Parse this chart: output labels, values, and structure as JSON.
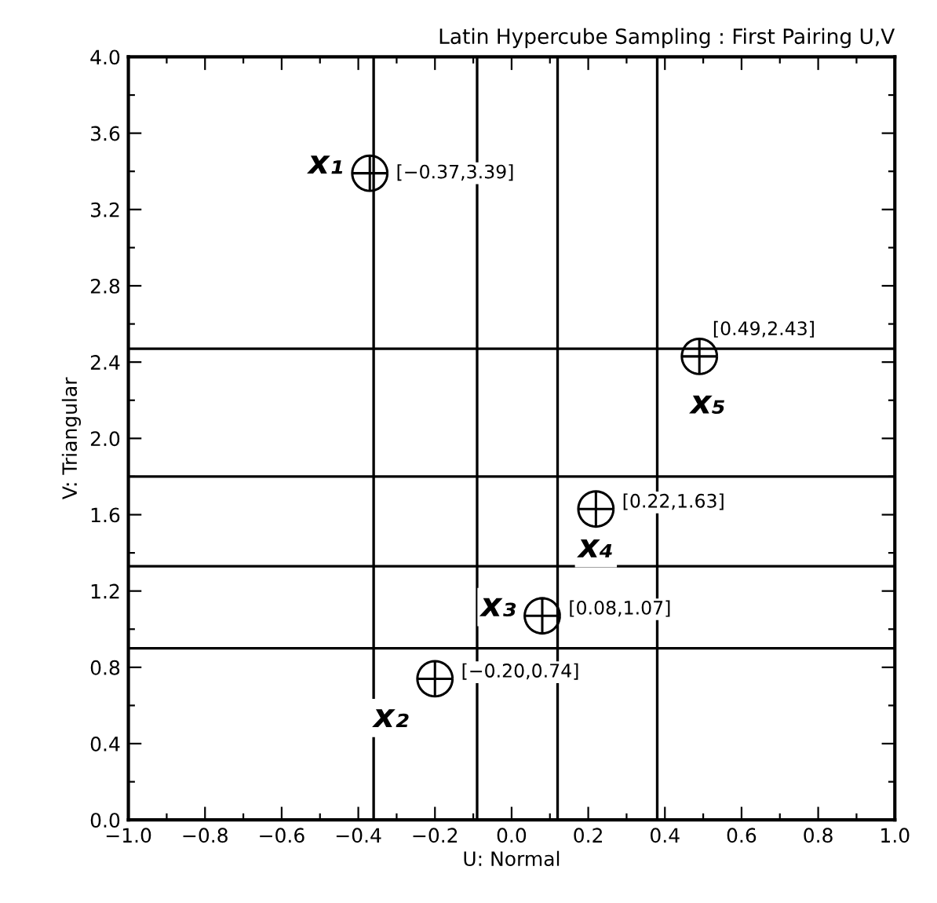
{
  "chart_data": {
    "type": "scatter",
    "title": "Latin Hypercube Sampling : First Pairing U,V",
    "xlabel": "U: Normal",
    "ylabel": "V: Triangular",
    "x": [
      -0.37,
      -0.2,
      0.08,
      0.22,
      0.49
    ],
    "values": [
      3.39,
      0.74,
      1.07,
      1.63,
      2.43
    ],
    "value_labels": [
      "[−0.37,3.39]",
      "[−0.20,0.74]",
      "[0.08,1.07]",
      "[0.22,1.63]",
      "[0.49,2.43]"
    ],
    "color": "#000000",
    "marker": "circle",
    "grid": false,
    "legend": false,
    "annotations": [
      {
        "text": "x₁",
        "x": -0.37,
        "y": 3.39
      },
      {
        "text": "x₂",
        "x": -0.2,
        "y": 0.74
      },
      {
        "text": "x₃",
        "x": 0.08,
        "y": 1.07
      },
      {
        "text": "x₄",
        "x": 0.22,
        "y": 1.63
      },
      {
        "text": "x₅",
        "x": 0.49,
        "y": 2.43
      }
    ],
    "ref_lines": [
      {
        "axis": "x",
        "value": -0.36
      },
      {
        "axis": "x",
        "value": -0.09
      },
      {
        "axis": "x",
        "value": 0.12
      },
      {
        "axis": "x",
        "value": 0.38
      },
      {
        "axis": "y",
        "value": 0.9
      },
      {
        "axis": "y",
        "value": 1.33
      },
      {
        "axis": "y",
        "value": 1.8
      },
      {
        "axis": "y",
        "value": 2.47
      }
    ],
    "xlim": [
      -1.0,
      1.0
    ],
    "ylim": [
      0.0,
      4.0
    ],
    "xticks": [
      {
        "value": -1.0,
        "label": "−1.0"
      },
      {
        "value": -0.9,
        "label": null
      },
      {
        "value": -0.8,
        "label": "−0.8"
      },
      {
        "value": -0.7,
        "label": null
      },
      {
        "value": -0.6,
        "label": "−0.6"
      },
      {
        "value": -0.5,
        "label": null
      },
      {
        "value": -0.4,
        "label": "−0.4"
      },
      {
        "value": -0.3,
        "label": null
      },
      {
        "value": -0.2,
        "label": "−0.2"
      },
      {
        "value": -0.1,
        "label": null
      },
      {
        "value": 0.0,
        "label": "0.0"
      },
      {
        "value": 0.1,
        "label": null
      },
      {
        "value": 0.2,
        "label": "0.2"
      },
      {
        "value": 0.3,
        "label": null
      },
      {
        "value": 0.4,
        "label": "0.4"
      },
      {
        "value": 0.5,
        "label": null
      },
      {
        "value": 0.6,
        "label": "0.6"
      },
      {
        "value": 0.7,
        "label": null
      },
      {
        "value": 0.8,
        "label": "0.8"
      },
      {
        "value": 0.9,
        "label": null
      },
      {
        "value": 1.0,
        "label": "1.0"
      }
    ],
    "yticks": [
      {
        "value": 0.0,
        "label": "0.0"
      },
      {
        "value": 0.2,
        "label": null
      },
      {
        "value": 0.4,
        "label": "0.4"
      },
      {
        "value": 0.6,
        "label": null
      },
      {
        "value": 0.8,
        "label": "0.8"
      },
      {
        "value": 1.0,
        "label": null
      },
      {
        "value": 1.2,
        "label": "1.2"
      },
      {
        "value": 1.4,
        "label": null
      },
      {
        "value": 1.6,
        "label": "1.6"
      },
      {
        "value": 1.8,
        "label": null
      },
      {
        "value": 2.0,
        "label": "2.0"
      },
      {
        "value": 2.2,
        "label": null
      },
      {
        "value": 2.4,
        "label": "2.4"
      },
      {
        "value": 2.6,
        "label": null
      },
      {
        "value": 2.8,
        "label": "2.8"
      },
      {
        "value": 3.0,
        "label": null
      },
      {
        "value": 3.2,
        "label": "3.2"
      },
      {
        "value": 3.4,
        "label": null
      },
      {
        "value": 3.6,
        "label": "3.6"
      },
      {
        "value": 3.8,
        "label": null
      },
      {
        "value": 4.0,
        "label": "4.0"
      }
    ]
  }
}
